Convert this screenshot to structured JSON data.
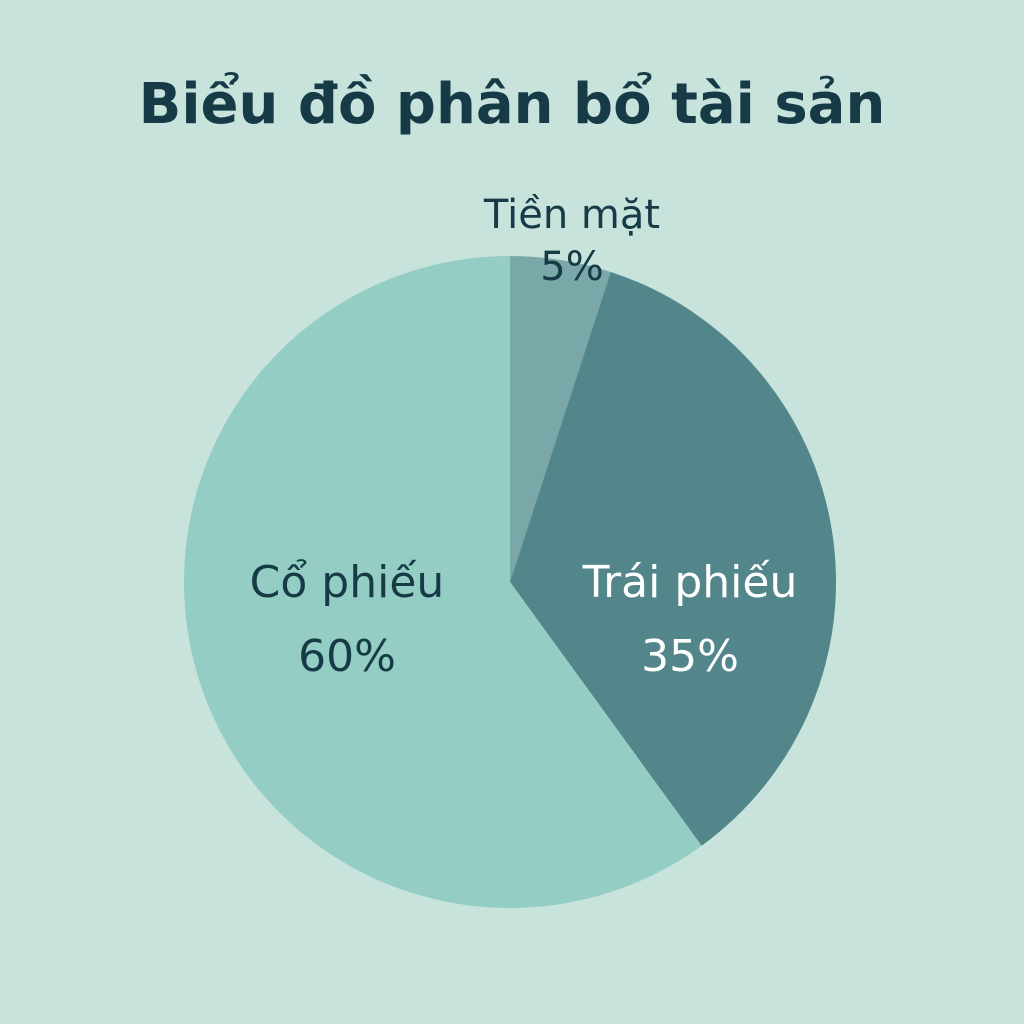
{
  "chart_data": {
    "type": "pie",
    "title": "Biểu đồ phân bổ tài sản",
    "start_angle_deg": 0,
    "direction": "clockwise",
    "slices": [
      {
        "label": "Tiền mặt",
        "value": 5,
        "value_label": "5%",
        "color": "#7aa8a8",
        "label_color": "#163b47",
        "label_position": "outside"
      },
      {
        "label": "Trái phiếu",
        "value": 35,
        "value_label": "35%",
        "color": "#52868a",
        "label_color": "#ffffff",
        "label_position": "inside"
      },
      {
        "label": "Cổ phiếu",
        "value": 60,
        "value_label": "60%",
        "color": "#94cdc4",
        "label_color": "#163b47",
        "label_position": "inside"
      }
    ]
  },
  "colors": {
    "background": "#c8e3dc",
    "title": "#163b47"
  }
}
